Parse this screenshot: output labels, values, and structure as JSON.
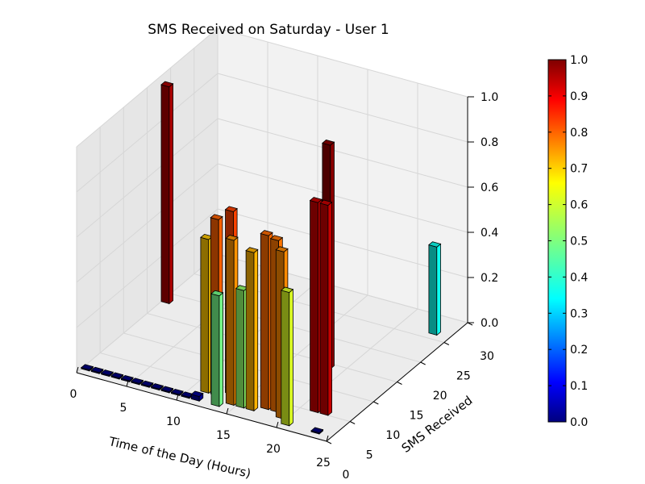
{
  "chart_data": {
    "type": "bar3d",
    "title": "SMS Received on Saturday - User 1",
    "xlabel": "Time of the Day (Hours)",
    "ylabel": "SMS Received",
    "zlabel": "",
    "xlim": [
      0,
      25
    ],
    "ylim": [
      0,
      30
    ],
    "zlim": [
      0,
      1.0
    ],
    "x_ticks": [
      "0",
      "5",
      "10",
      "15",
      "20",
      "25"
    ],
    "y_ticks": [
      "0",
      "5",
      "10",
      "15",
      "20",
      "25",
      "30"
    ],
    "z_ticks": [
      "0.0",
      "0.2",
      "0.4",
      "0.6",
      "0.8",
      "1.0"
    ],
    "grid": true,
    "colormap": "jet",
    "colorbar": {
      "ticks": [
        "0.0",
        "0.1",
        "0.2",
        "0.3",
        "0.4",
        "0.5",
        "0.6",
        "0.7",
        "0.8",
        "0.9",
        "1.0"
      ],
      "range": [
        0,
        1.0
      ]
    },
    "bars": [
      {
        "x": 0,
        "y": 1,
        "value": 0.0
      },
      {
        "x": 1,
        "y": 1,
        "value": 0.0
      },
      {
        "x": 2,
        "y": 1,
        "value": 0.0
      },
      {
        "x": 3,
        "y": 1,
        "value": 0.0
      },
      {
        "x": 4,
        "y": 1,
        "value": 0.0
      },
      {
        "x": 5,
        "y": 1,
        "value": 0.0
      },
      {
        "x": 6,
        "y": 1,
        "value": 0.0
      },
      {
        "x": 7,
        "y": 1,
        "value": 0.0
      },
      {
        "x": 8,
        "y": 1,
        "value": 0.0
      },
      {
        "x": 9,
        "y": 1,
        "value": 0.0
      },
      {
        "x": 10,
        "y": 1,
        "value": 0.0
      },
      {
        "x": 11,
        "y": 1,
        "value": 0.02
      },
      {
        "x": 0,
        "y": 18,
        "value": 0.96
      },
      {
        "x": 11,
        "y": 3,
        "value": 0.68
      },
      {
        "x": 12,
        "y": 3,
        "value": 0.78
      },
      {
        "x": 13,
        "y": 4,
        "value": 0.81
      },
      {
        "x": 13,
        "y": 1,
        "value": 0.49
      },
      {
        "x": 14,
        "y": 2,
        "value": 0.73
      },
      {
        "x": 15,
        "y": 2,
        "value": 0.52
      },
      {
        "x": 16,
        "y": 2,
        "value": 0.7
      },
      {
        "x": 17,
        "y": 3,
        "value": 0.77
      },
      {
        "x": 18,
        "y": 3,
        "value": 0.76
      },
      {
        "x": 19,
        "y": 2,
        "value": 0.74
      },
      {
        "x": 20,
        "y": 1,
        "value": 0.59
      },
      {
        "x": 18,
        "y": 14,
        "value": 0.99
      },
      {
        "x": 21,
        "y": 5,
        "value": 0.93
      },
      {
        "x": 22,
        "y": 5,
        "value": 0.93
      },
      {
        "x": 23,
        "y": 1,
        "value": 0.0
      },
      {
        "x": 23,
        "y": 26,
        "value": 0.39
      }
    ]
  }
}
